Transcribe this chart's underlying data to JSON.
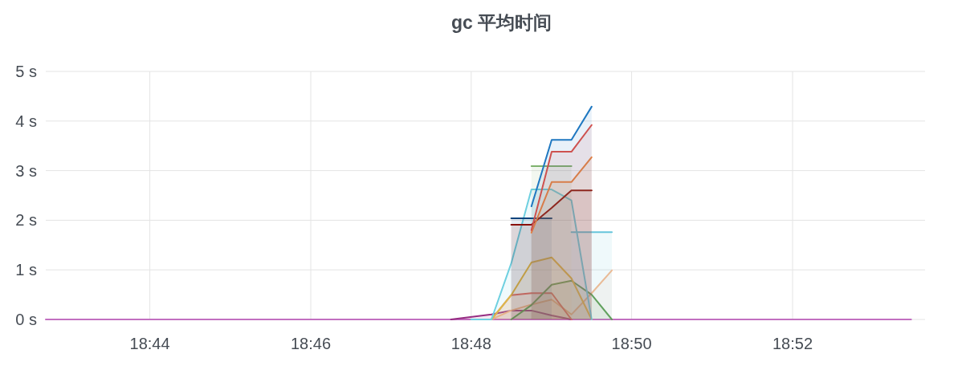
{
  "chart_data": {
    "type": "area",
    "title": "gc 平均时间",
    "xlim": [
      18.7117,
      18.8942
    ],
    "ylim": [
      0,
      5
    ],
    "xticks": [
      {
        "value": 18.7333,
        "label": "18:44"
      },
      {
        "value": 18.7667,
        "label": "18:46"
      },
      {
        "value": 18.8,
        "label": "18:48"
      },
      {
        "value": 18.8333,
        "label": "18:50"
      },
      {
        "value": 18.8667,
        "label": "18:52"
      }
    ],
    "yticks": [
      {
        "value": 0,
        "label": "0 s"
      },
      {
        "value": 1,
        "label": "1 s"
      },
      {
        "value": 2,
        "label": "2 s"
      },
      {
        "value": 3,
        "label": "3 s"
      },
      {
        "value": 4,
        "label": "4 s"
      },
      {
        "value": 5,
        "label": "5 s"
      }
    ],
    "grid": true,
    "series": [
      {
        "type": "line",
        "color": "#c26fc0",
        "x": [
          18.7117,
          18.75,
          18.8,
          18.85,
          18.8913
        ],
        "values": [
          0,
          0,
          0,
          0,
          0
        ]
      },
      {
        "color": "#962d82",
        "x": [
          18.7958,
          18.8042,
          18.8083,
          18.8125,
          18.8167,
          18.8208
        ],
        "values": [
          0,
          0.1,
          0.18,
          0.18,
          0.08,
          0
        ]
      },
      {
        "color": "#f9ba8f",
        "x": [
          18.8042,
          18.8083,
          18.8125,
          18.8167,
          18.8208,
          18.825,
          18.8292
        ],
        "values": [
          0,
          0.18,
          0.3,
          0.4,
          0.1,
          0.53,
          0.99
        ]
      },
      {
        "color": "#ea6460",
        "x": [
          18.8042,
          18.8083,
          18.8125,
          18.8167,
          18.8208
        ],
        "values": [
          0,
          0.49,
          0.53,
          0.53,
          0
        ]
      },
      {
        "color": "#629e51",
        "x": [
          18.8083,
          18.8125,
          18.8167,
          18.8208,
          18.825,
          18.8292
        ],
        "values": [
          0,
          0.29,
          0.7,
          0.78,
          0.5,
          0
        ]
      },
      {
        "color": "#eab839",
        "x": [
          18.8042,
          18.8083,
          18.8125,
          18.8167,
          18.8208,
          18.825
        ],
        "values": [
          0,
          0.49,
          1.15,
          1.25,
          0.83,
          0
        ]
      },
      {
        "color": "#65c5db",
        "x": [
          18.8208,
          18.825,
          18.8292
        ],
        "values": [
          1.76,
          1.76,
          1.76
        ]
      },
      {
        "color": "#6ed0e0",
        "x": [
          18.8,
          18.8042,
          18.8083,
          18.8125,
          18.8167,
          18.8208,
          18.825
        ],
        "values": [
          0,
          0,
          1.13,
          2.62,
          2.62,
          2.4,
          0
        ]
      },
      {
        "color": "#0a437c",
        "x": [
          18.8083,
          18.8125,
          18.8167
        ],
        "values": [
          2.04,
          2.04,
          2.04
        ]
      },
      {
        "color": "#7eb26d",
        "x": [
          18.8125,
          18.8167,
          18.8208
        ],
        "values": [
          3.09,
          3.09,
          3.09
        ]
      },
      {
        "color": "#890f02",
        "x": [
          18.8083,
          18.8125,
          18.8167,
          18.8208,
          18.825
        ],
        "values": [
          1.91,
          1.91,
          2.25,
          2.6,
          2.6
        ]
      },
      {
        "color": "#ef843c",
        "x": [
          18.8125,
          18.8167,
          18.8208,
          18.825
        ],
        "values": [
          1.75,
          2.77,
          2.77,
          3.27
        ]
      },
      {
        "color": "#e24d42",
        "x": [
          18.8125,
          18.8167,
          18.8208,
          18.825
        ],
        "values": [
          1.8,
          3.38,
          3.38,
          3.92
        ]
      },
      {
        "color": "#1f78c1",
        "x": [
          18.8125,
          18.8167,
          18.8208,
          18.825
        ],
        "values": [
          2.28,
          3.62,
          3.62,
          4.29
        ]
      }
    ]
  }
}
